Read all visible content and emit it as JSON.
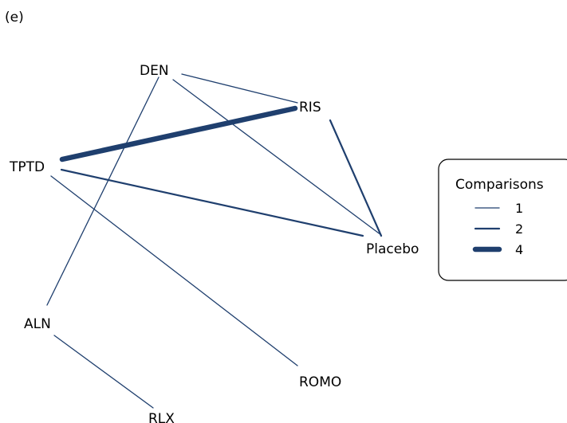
{
  "panel_label": "(e)",
  "edge_color": "#1f3f6e",
  "nodes": [
    {
      "id": "DEN",
      "label": "DEN"
    },
    {
      "id": "RIS",
      "label": "RIS"
    },
    {
      "id": "TPTD",
      "label": "TPTD"
    },
    {
      "id": "Placebo",
      "label": "Placebo"
    },
    {
      "id": "ALN",
      "label": "ALN"
    },
    {
      "id": "ROMO",
      "label": "ROMO"
    },
    {
      "id": "RLX",
      "label": "RLX"
    }
  ],
  "edges": [
    {
      "from": "DEN",
      "to": "RIS",
      "comparisons": 1
    },
    {
      "from": "DEN",
      "to": "Placebo",
      "comparisons": 1
    },
    {
      "from": "DEN",
      "to": "ALN",
      "comparisons": 1
    },
    {
      "from": "TPTD",
      "to": "RIS",
      "comparisons": 4
    },
    {
      "from": "RIS",
      "to": "Placebo",
      "comparisons": 2
    },
    {
      "from": "TPTD",
      "to": "Placebo",
      "comparisons": 2
    },
    {
      "from": "TPTD",
      "to": "ROMO",
      "comparisons": 1
    },
    {
      "from": "ALN",
      "to": "RLX",
      "comparisons": 1
    }
  ],
  "legend": {
    "title": "Comparisons",
    "items": [
      {
        "label": "1",
        "value": 1
      },
      {
        "label": "2",
        "value": 2
      },
      {
        "label": "4",
        "value": 4
      }
    ]
  }
}
